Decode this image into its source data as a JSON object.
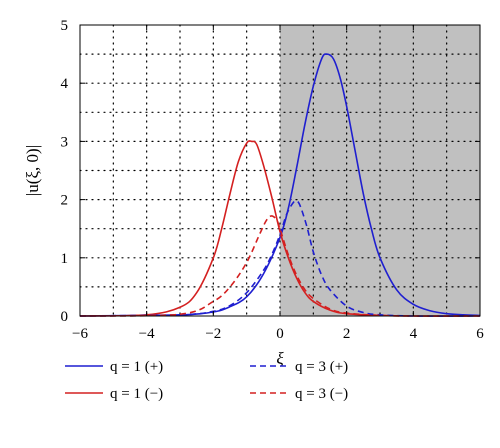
{
  "chart_data": {
    "type": "line",
    "xlabel": "ξ",
    "ylabel": "|u(ξ, 0)|",
    "xlim": [
      -6,
      6
    ],
    "ylim": [
      0,
      5
    ],
    "x_ticks": [
      "−6",
      "−4",
      "−2",
      "0",
      "2",
      "4",
      "6"
    ],
    "y_ticks": [
      "0",
      "1",
      "2",
      "3",
      "4",
      "5"
    ],
    "grid": "dotted",
    "shaded_region": {
      "x_from": 0,
      "x_to": 6,
      "color": "#c0c0c0"
    },
    "legend_position": "bottom",
    "series": [
      {
        "name": "q = 1 (+)",
        "color": "#1f1fd0",
        "dash": "solid",
        "x": [
          -6,
          -3,
          -2,
          -1.5,
          -1,
          -0.5,
          0,
          0.25,
          0.5,
          0.75,
          1,
          1.25,
          1.4,
          1.6,
          1.8,
          2,
          2.25,
          2.5,
          2.75,
          3,
          3.5,
          4,
          4.5,
          5,
          5.5,
          6
        ],
        "y": [
          0,
          0.02,
          0.07,
          0.16,
          0.33,
          0.72,
          1.35,
          1.85,
          2.55,
          3.3,
          3.95,
          4.42,
          4.5,
          4.42,
          4.1,
          3.6,
          2.85,
          2.1,
          1.48,
          1.0,
          0.45,
          0.2,
          0.09,
          0.04,
          0.02,
          0.01
        ]
      },
      {
        "name": "q = 1 (−)",
        "color": "#d42020",
        "dash": "solid",
        "x": [
          -6,
          -4,
          -3,
          -2.5,
          -2,
          -1.75,
          -1.5,
          -1.25,
          -1,
          -0.85,
          -0.7,
          -0.5,
          -0.25,
          0,
          0.25,
          0.5,
          0.75,
          1,
          1.5,
          2,
          3,
          4,
          6
        ],
        "y": [
          0,
          0.02,
          0.15,
          0.4,
          1.0,
          1.5,
          2.1,
          2.65,
          2.97,
          3.0,
          2.95,
          2.6,
          2.05,
          1.45,
          1.0,
          0.65,
          0.4,
          0.25,
          0.1,
          0.04,
          0.01,
          0,
          0
        ]
      },
      {
        "name": "q = 3 (+)",
        "color": "#1f1fd0",
        "dash": "dashed",
        "x": [
          -6,
          -3,
          -2,
          -1.5,
          -1,
          -0.5,
          -0.25,
          0,
          0.2,
          0.4,
          0.5,
          0.6,
          0.8,
          1,
          1.25,
          1.5,
          2,
          2.5,
          3,
          4,
          6
        ],
        "y": [
          0,
          0.02,
          0.08,
          0.18,
          0.4,
          0.78,
          1.05,
          1.4,
          1.75,
          1.95,
          1.97,
          1.9,
          1.55,
          1.1,
          0.7,
          0.45,
          0.17,
          0.06,
          0.02,
          0,
          0
        ]
      },
      {
        "name": "q = 3 (−)",
        "color": "#d42020",
        "dash": "dashed",
        "x": [
          -6,
          -3,
          -2,
          -1.5,
          -1,
          -0.6,
          -0.4,
          -0.25,
          -0.1,
          0,
          0.25,
          0.5,
          0.75,
          1,
          1.5,
          2,
          3,
          4,
          6
        ],
        "y": [
          0,
          0.03,
          0.25,
          0.5,
          0.92,
          1.42,
          1.65,
          1.72,
          1.65,
          1.5,
          1.05,
          0.7,
          0.45,
          0.3,
          0.12,
          0.05,
          0.01,
          0,
          0
        ]
      }
    ]
  }
}
